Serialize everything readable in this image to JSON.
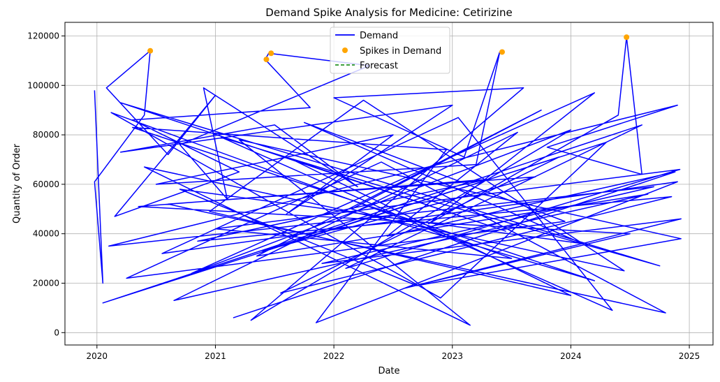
{
  "chart_data": {
    "type": "line",
    "title": "Demand Spike Analysis for Medicine: Cetirizine",
    "xlabel": "Date",
    "ylabel": "Quantity of Order",
    "xlim": [
      2019.73,
      2025.2
    ],
    "ylim": [
      -5000,
      125500
    ],
    "x_ticks": [
      "2020",
      "2021",
      "2022",
      "2023",
      "2024",
      "2025"
    ],
    "x_tick_values": [
      2020,
      2021,
      2022,
      2023,
      2024,
      2025
    ],
    "y_ticks": [
      "0",
      "20000",
      "40000",
      "60000",
      "80000",
      "100000",
      "120000"
    ],
    "y_tick_values": [
      0,
      20000,
      40000,
      60000,
      80000,
      100000,
      120000
    ],
    "grid": true,
    "legend_position": "top-center",
    "colors": {
      "demand": "#0000ff",
      "spikes": "#ffa500",
      "forecast": "#008000"
    },
    "legend": [
      {
        "label": "Demand",
        "kind": "line",
        "color": "#0000ff"
      },
      {
        "label": "Spikes in Demand",
        "kind": "marker",
        "color": "#ffa500"
      },
      {
        "label": "Forecast",
        "kind": "dashed",
        "color": "#008000"
      }
    ],
    "series": [
      {
        "name": "Demand",
        "style": "line",
        "color": "#0000ff",
        "x": [
          2019.98,
          2020.05,
          2019.98,
          2020.4,
          2020.45,
          2020.08,
          2020.6,
          2021.0,
          2020.15,
          2021.2,
          2020.3,
          2021.8,
          2021.42,
          2021.45,
          2022.3,
          2020.7,
          2021.1,
          2020.9,
          2022.2,
          2021.5,
          2020.2,
          2023.0,
          2021.6,
          2022.5,
          2020.5,
          2023.2,
          2023.4,
          2023.1,
          2022.0,
          2023.6,
          2021.3,
          2024.0,
          2020.8,
          2024.2,
          2022.8,
          2024.4,
          2024.47,
          2024.6,
          2023.8,
          2024.9,
          2020.1,
          2024.7,
          2021.9,
          2024.93,
          2022.6,
          2024.5,
          2020.35,
          2023.3,
          2020.85,
          2024.85,
          2021.55,
          2023.9,
          2020.05,
          2024.6,
          2022.1,
          2024.92,
          2021.0,
          2023.5,
          2020.12,
          2022.9,
          2024.3,
          2021.4,
          2023.7,
          2020.6,
          2024.8,
          2022.4,
          2020.25,
          2023.95,
          2021.75,
          2024.1,
          2020.7,
          2022.7,
          2024.93,
          2021.2,
          2023.15,
          2020.4,
          2024.45,
          2022.25,
          2020.95,
          2024.0,
          2021.65,
          2023.45,
          2020.2,
          2024.75,
          2022.55,
          2021.05,
          2024.35,
          2023.05,
          2020.55,
          2024.9,
          2021.85,
          2022.95,
          2020.3,
          2024.2,
          2022.15,
          2023.75,
          2021.35,
          2024.65,
          2020.65,
          2023.55,
          2022.45,
          2024.88,
          2021.15
        ],
        "y": [
          98000,
          20000,
          61000,
          88000,
          114000,
          99000,
          72000,
          96000,
          47000,
          65000,
          86000,
          91000,
          110500,
          113000,
          108000,
          76000,
          54000,
          99000,
          59000,
          84000,
          73000,
          92000,
          48000,
          80000,
          60000,
          68000,
          113500,
          71000,
          95000,
          99000,
          5000,
          82000,
          24000,
          97000,
          44000,
          88000,
          119500,
          64000,
          75000,
          92000,
          35000,
          59000,
          28000,
          46000,
          18000,
          40000,
          51000,
          62000,
          37000,
          55000,
          16000,
          71000,
          12000,
          84000,
          26000,
          66000,
          42000,
          30000,
          89000,
          14000,
          77000,
          33000,
          63000,
          52000,
          8000,
          69000,
          22000,
          45000,
          85000,
          36000,
          58000,
          19000,
          38000,
          78000,
          3000,
          67000,
          25000,
          94000,
          49000,
          15000,
          70000,
          41000,
          93000,
          27000,
          57000,
          79000,
          9000,
          87000,
          32000,
          61000,
          4000,
          74000,
          83000,
          21000,
          50000,
          90000,
          31000,
          56000,
          13000,
          81000,
          39000,
          65000,
          6000
        ]
      },
      {
        "name": "Spikes in Demand",
        "style": "scatter",
        "color": "#ffa500",
        "x": [
          2020.45,
          2021.43,
          2021.47,
          2023.42,
          2024.47
        ],
        "y": [
          114000,
          110500,
          113000,
          113500,
          119500
        ]
      },
      {
        "name": "Forecast",
        "style": "dashed",
        "color": "#008000",
        "x": [],
        "y": []
      }
    ]
  }
}
